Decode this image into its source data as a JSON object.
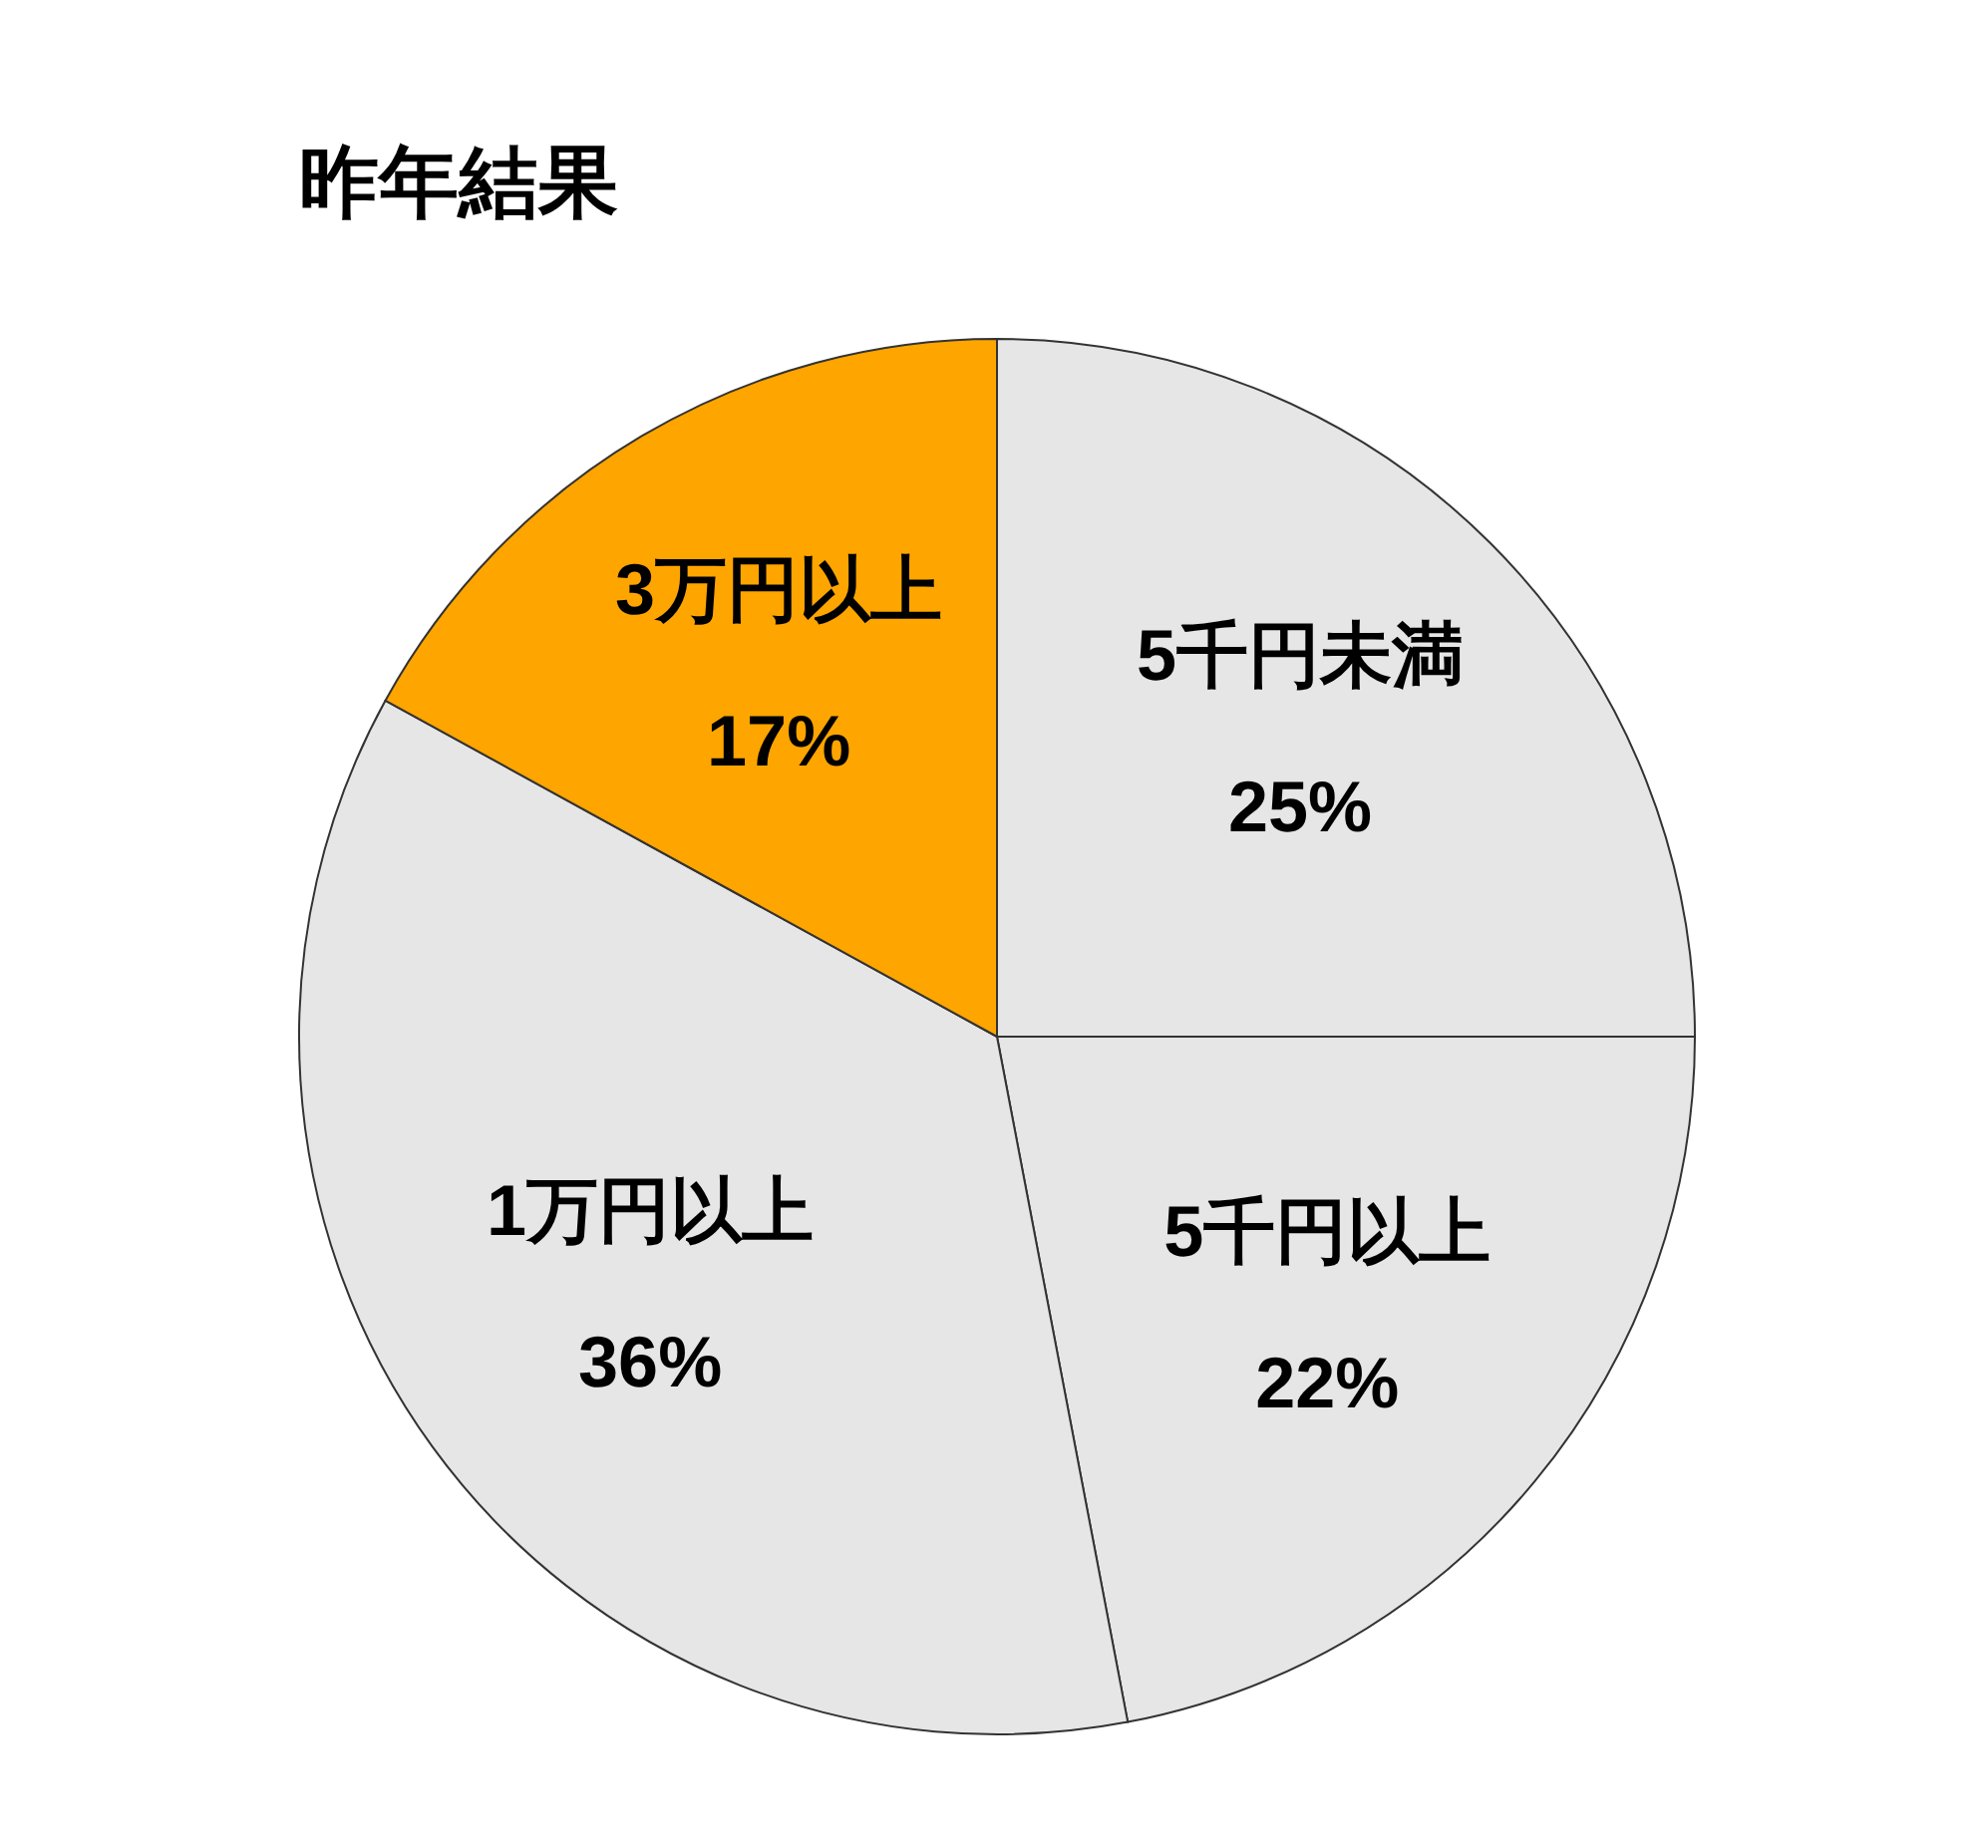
{
  "chart_data": {
    "type": "pie",
    "title": "昨年結果",
    "categories": [
      "5千円未満",
      "5千円以上",
      "1万円以上",
      "3万円以上"
    ],
    "values": [
      25,
      22,
      36,
      17
    ],
    "value_labels": [
      "25%",
      "22%",
      "36%",
      "17%"
    ],
    "colors": [
      "#e6e6e6",
      "#e6e6e6",
      "#e6e6e6",
      "#ffa500"
    ],
    "legend": false
  }
}
